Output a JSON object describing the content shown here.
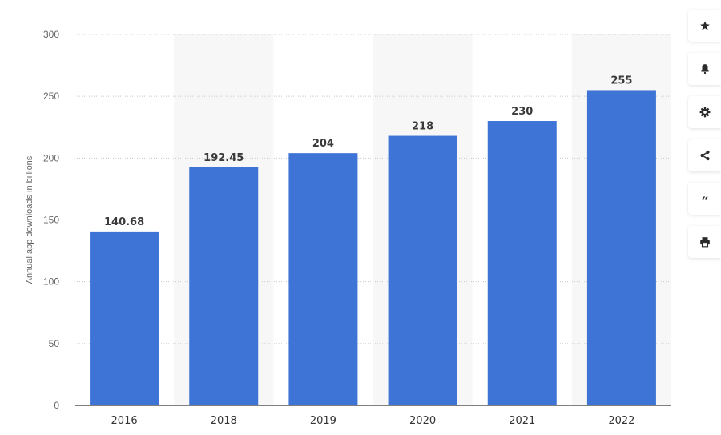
{
  "chart_data": {
    "type": "bar",
    "categories": [
      "2016",
      "2018",
      "2019",
      "2020",
      "2021",
      "2022"
    ],
    "values": [
      140.68,
      192.45,
      204,
      218,
      230,
      255
    ],
    "value_labels": [
      "140.68",
      "192.45",
      "204",
      "218",
      "230",
      "255"
    ],
    "ylabel": "Annual app downloads in billions",
    "xlabel": "",
    "ylim": [
      0,
      300
    ],
    "yticks": [
      0,
      50,
      100,
      150,
      200,
      250,
      300
    ],
    "grid": true,
    "bar_color": "#3d74d6",
    "alt_column_shading": true
  },
  "toolbar": {
    "buttons": [
      {
        "name": "favorite",
        "icon": "star-icon"
      },
      {
        "name": "notification",
        "icon": "bell-icon"
      },
      {
        "name": "settings",
        "icon": "gear-icon"
      },
      {
        "name": "share",
        "icon": "share-icon"
      },
      {
        "name": "cite",
        "icon": "quote-icon",
        "glyph": "“"
      },
      {
        "name": "print",
        "icon": "print-icon"
      }
    ]
  },
  "colors": {
    "bar": "#3d74d6",
    "grid": "#c8c8c8",
    "axis": "#333333",
    "shade": "#f7f7f7",
    "tick_text": "#666666",
    "value_text": "#3a3a3a"
  }
}
